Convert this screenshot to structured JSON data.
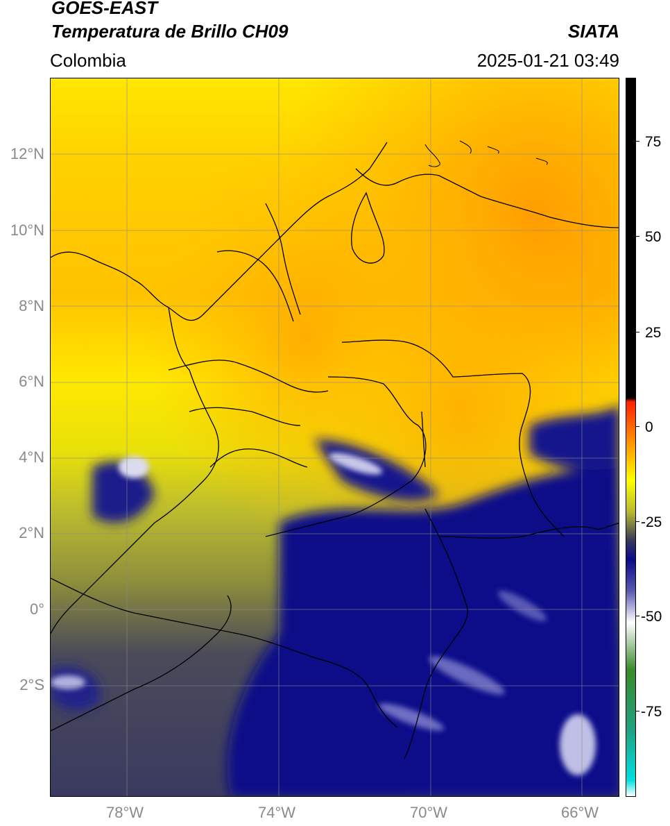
{
  "header": {
    "satellite": "GOES-EAST",
    "product": "Temperatura de Brillo CH09",
    "region": "Colombia",
    "agency": "SIATA",
    "datetime": "2025-01-21 03:49"
  },
  "axes": {
    "lat_labels": [
      "12°N",
      "10°N",
      "8°N",
      "6°N",
      "4°N",
      "2°N",
      "0°",
      "2°S"
    ],
    "lon_labels": [
      "78°W",
      "74°W",
      "70°W",
      "66°W"
    ]
  },
  "colorbar": {
    "ticks": [
      "75",
      "50",
      "25",
      "0",
      "-25",
      "-50",
      "-75"
    ],
    "stops": [
      {
        "value": 90,
        "color": "#000000"
      },
      {
        "value": 9,
        "color": "#000000"
      },
      {
        "value": 8,
        "color": "#ff2000"
      },
      {
        "value": 0,
        "color": "#ff7a00"
      },
      {
        "value": -12,
        "color": "#ffff00"
      },
      {
        "value": -20,
        "color": "#b8b830"
      },
      {
        "value": -27,
        "color": "#3a3a5a"
      },
      {
        "value": -32,
        "color": "#0a0a88"
      },
      {
        "value": -40,
        "color": "#5a5ab0"
      },
      {
        "value": -48,
        "color": "#ffffff"
      },
      {
        "value": -60,
        "color": "#3a8a2a"
      },
      {
        "value": -75,
        "color": "#20a080"
      },
      {
        "value": -88,
        "color": "#00e0e0"
      },
      {
        "value": -92,
        "color": "#ffffff"
      }
    ]
  },
  "colors": {
    "warm": "#ffa000",
    "orange": "#ffb000",
    "yellow": "#ffee00",
    "olive": "#a8a82c",
    "slate": "#3c3c5c",
    "navy": "#0c0c84",
    "cloud": "#d8d8ee"
  }
}
